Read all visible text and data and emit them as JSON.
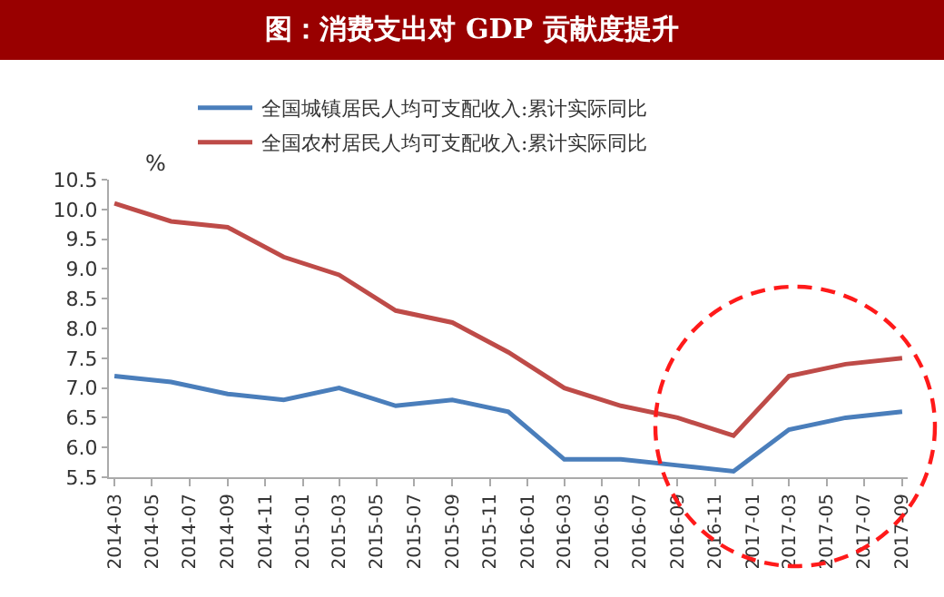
{
  "chart_data": {
    "type": "line",
    "title": "图：消费支出对 GDP 贡献度提升",
    "ylabel": "%",
    "x": [
      "2014-03",
      "2014-06",
      "2014-09",
      "2014-12",
      "2015-03",
      "2015-06",
      "2015-09",
      "2015-12",
      "2016-03",
      "2016-06",
      "2016-09",
      "2016-12",
      "2017-03",
      "2017-06",
      "2017-09"
    ],
    "series": [
      {
        "name": "全国城镇居民人均可支配收入:累计实际同比",
        "color": "#4a7ebb",
        "values": [
          7.2,
          7.1,
          6.9,
          6.8,
          7.0,
          6.7,
          6.8,
          6.6,
          5.8,
          5.8,
          5.7,
          5.6,
          6.3,
          6.5,
          6.6
        ]
      },
      {
        "name": "全国农村居民人均可支配收入:累计实际同比",
        "color": "#be4b48",
        "values": [
          10.1,
          9.8,
          9.7,
          9.2,
          8.9,
          8.3,
          8.1,
          7.6,
          7.0,
          6.7,
          6.5,
          6.2,
          7.2,
          7.4,
          7.5
        ]
      }
    ],
    "xlim": [
      "2014-02-20",
      "2017-09-10"
    ],
    "xticks": [
      "2014-03",
      "2014-05",
      "2014-07",
      "2014-09",
      "2014-11",
      "2015-01",
      "2015-03",
      "2015-05",
      "2015-07",
      "2015-09",
      "2015-11",
      "2016-01",
      "2016-03",
      "2016-05",
      "2016-07",
      "2016-09",
      "2016-11",
      "2017-01",
      "2017-03",
      "2017-05",
      "2017-07",
      "2017-09"
    ],
    "ylim": [
      5.5,
      10.5
    ],
    "yticks": [
      5.5,
      {
        "value": 6,
        "label": "6.0"
      },
      6.5,
      {
        "value": 7,
        "label": "7.0"
      },
      7.5,
      {
        "value": 8,
        "label": "8.0"
      },
      8.5,
      {
        "value": 9,
        "label": "9.0"
      },
      9.5,
      {
        "value": 10,
        "label": "10.0"
      },
      10.5
    ],
    "grid": false,
    "legend": "top",
    "marker": "none",
    "line_style": "solid"
  }
}
